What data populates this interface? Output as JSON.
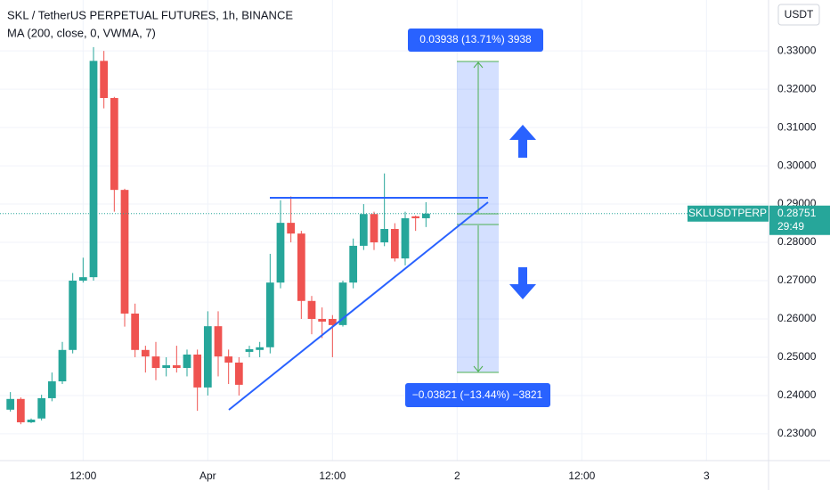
{
  "chart_data": {
    "type": "candlestick",
    "title": "SKL / TetherUS PERPETUAL FUTURES, 1h, BINANCE",
    "subtitle": "MA (200, close, 0, VWMA, 7)",
    "currency": "USDT",
    "x": [
      1,
      2,
      3,
      4,
      5,
      6,
      7,
      8,
      9,
      10,
      11,
      12,
      13,
      14,
      15,
      16,
      17,
      18,
      19,
      20,
      21,
      22,
      23,
      24,
      25,
      26,
      27,
      28,
      29,
      30,
      31,
      32,
      33,
      34,
      35,
      36,
      37,
      38,
      39,
      40,
      41
    ],
    "open": [
      0.2363,
      0.2391,
      0.233,
      0.234,
      0.2393,
      0.2437,
      0.2519,
      0.27,
      0.2709,
      0.3274,
      0.3177,
      0.2937,
      0.2614,
      0.2519,
      0.2502,
      0.2472,
      0.2479,
      0.2472,
      0.2507,
      0.2421,
      0.2581,
      0.2502,
      0.2486,
      0.2514,
      0.2519,
      0.2526,
      0.2695,
      0.2851,
      0.2823,
      0.2647,
      0.26,
      0.26,
      0.2584,
      0.2695,
      0.2791,
      0.2874,
      0.28,
      0.2835,
      0.2758,
      0.2868,
      0.2863
    ],
    "high": [
      0.2409,
      0.2395,
      0.234,
      0.2402,
      0.246,
      0.254,
      0.272,
      0.276,
      0.331,
      0.33,
      0.318,
      0.294,
      0.264,
      0.253,
      0.254,
      0.25,
      0.253,
      0.252,
      0.252,
      0.262,
      0.262,
      0.252,
      0.25,
      0.253,
      0.254,
      0.277,
      0.291,
      0.292,
      0.283,
      0.266,
      0.263,
      0.261,
      0.27,
      0.281,
      0.29,
      0.288,
      0.298,
      0.285,
      0.288,
      0.287,
      0.2905
    ],
    "low": [
      0.2358,
      0.2325,
      0.2328,
      0.2335,
      0.2385,
      0.243,
      0.251,
      0.2695,
      0.27,
      0.315,
      0.288,
      0.258,
      0.25,
      0.246,
      0.244,
      0.245,
      0.246,
      0.245,
      0.236,
      0.24,
      0.245,
      0.243,
      0.24,
      0.25,
      0.25,
      0.251,
      0.268,
      0.28,
      0.26,
      0.256,
      0.255,
      0.25,
      0.258,
      0.268,
      0.278,
      0.278,
      0.279,
      0.275,
      0.274,
      0.283,
      0.284
    ],
    "close": [
      0.2391,
      0.233,
      0.2337,
      0.2393,
      0.2437,
      0.2519,
      0.27,
      0.2709,
      0.3274,
      0.3177,
      0.2937,
      0.2614,
      0.2519,
      0.2502,
      0.2472,
      0.2479,
      0.2472,
      0.2507,
      0.2421,
      0.2581,
      0.2502,
      0.2486,
      0.2428,
      0.2521,
      0.2526,
      0.2695,
      0.2851,
      0.2823,
      0.2647,
      0.26,
      0.2593,
      0.2584,
      0.2695,
      0.2791,
      0.2874,
      0.28,
      0.2835,
      0.2758,
      0.2863,
      0.2863,
      0.2875
    ],
    "up_color": "#26a69a",
    "down_color": "#ef5350",
    "xlim": [
      0,
      73.886
    ],
    "xticks": [
      {
        "value": 8,
        "label": "12:00"
      },
      {
        "value": 20,
        "label": "Apr"
      },
      {
        "value": 32,
        "label": "12:00"
      },
      {
        "value": 44,
        "label": "2"
      },
      {
        "value": 56,
        "label": "12:00"
      },
      {
        "value": 68,
        "label": "3"
      }
    ],
    "ylim": [
      0.223,
      0.3433
    ],
    "yticks": [
      {
        "value": 0.33,
        "label": "0.33000"
      },
      {
        "value": 0.32,
        "label": "0.32000"
      },
      {
        "value": 0.31,
        "label": "0.31000"
      },
      {
        "value": 0.3,
        "label": "0.30000"
      },
      {
        "value": 0.29,
        "label": "0.29000"
      },
      {
        "value": 0.28,
        "label": "0.28000"
      },
      {
        "value": 0.27,
        "label": "0.27000"
      },
      {
        "value": 0.26,
        "label": "0.26000"
      },
      {
        "value": 0.25,
        "label": "0.25000"
      },
      {
        "value": 0.24,
        "label": "0.24000"
      },
      {
        "value": 0.23,
        "label": "0.23000"
      }
    ],
    "last_price": {
      "symbol": "SKLUSDTPERP",
      "value": 0.28751,
      "countdown": "29:49"
    },
    "annotations": {
      "profit": "0.03938 (13.71%) 3938",
      "loss": "−0.03821 (−13.44%) −3821"
    }
  }
}
